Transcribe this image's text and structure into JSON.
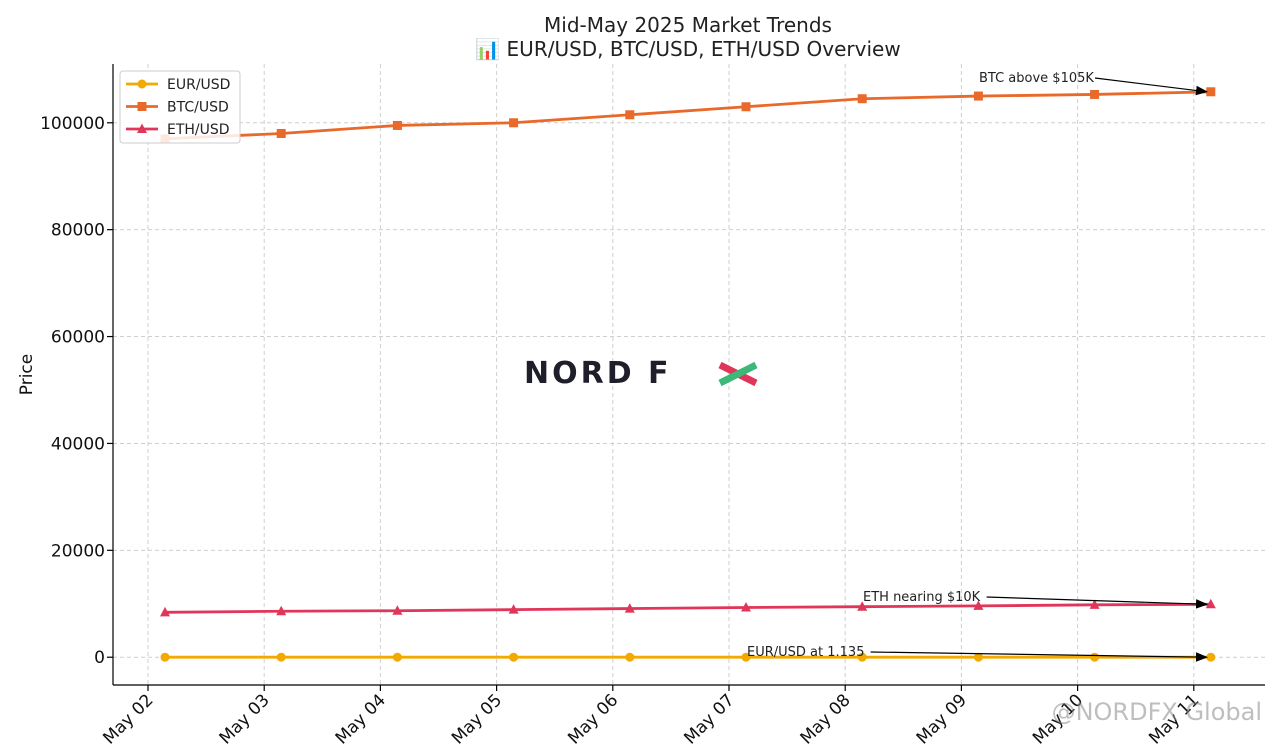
{
  "chart_data": {
    "type": "line",
    "title": "Mid-May 2025 Market Trends",
    "subtitle": "📊 EUR/USD, BTC/USD, ETH/USD Overview",
    "xlabel": "",
    "ylabel": "Price",
    "categories": [
      "May 02",
      "May 03",
      "May 04",
      "May 05",
      "May 06",
      "May 07",
      "May 08",
      "May 09",
      "May 10",
      "May 11"
    ],
    "ylim": [
      -5200,
      111000
    ],
    "yticks": [
      0,
      20000,
      40000,
      60000,
      80000,
      100000
    ],
    "grid": true,
    "legend_position": "top-left",
    "series": [
      {
        "name": "EUR/USD",
        "color": "#f2a900",
        "marker": "circle",
        "values": [
          1.12,
          1.121,
          1.122,
          1.124,
          1.126,
          1.128,
          1.13,
          1.132,
          1.133,
          1.135
        ]
      },
      {
        "name": "BTC/USD",
        "color": "#e8692a",
        "marker": "square",
        "values": [
          97000,
          98000,
          99500,
          100000,
          101500,
          103000,
          104500,
          105000,
          105300,
          105800
        ]
      },
      {
        "name": "ETH/USD",
        "color": "#e0365a",
        "marker": "triangle",
        "values": [
          8400,
          8600,
          8700,
          8900,
          9100,
          9300,
          9450,
          9600,
          9800,
          9900
        ]
      }
    ],
    "annotations": [
      {
        "text": "BTC above $105K",
        "target_index": 9,
        "series": "BTC/USD"
      },
      {
        "text": "ETH nearing $10K",
        "target_index": 9,
        "series": "ETH/USD"
      },
      {
        "text": "EUR/USD at 1.135",
        "target_index": 9,
        "series": "EUR/USD"
      }
    ]
  },
  "watermark": {
    "logo_text": "NORD FX",
    "credit": "@NORDFX Global"
  }
}
